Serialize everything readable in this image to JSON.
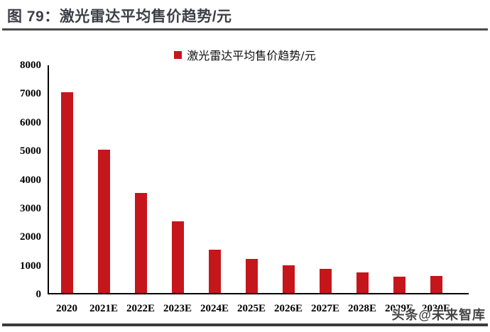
{
  "figure": {
    "title": "图 79：激光雷达平均售价趋势/元",
    "watermark": "头条@未来智库"
  },
  "colors": {
    "bar": "#c5161c",
    "title_text": "#3e3e47",
    "rule": "#4a4a4a",
    "axis": "#000000"
  },
  "chart_data": {
    "type": "bar",
    "title": "激光雷达平均售价趋势/元",
    "legend": [
      "激光雷达平均售价趋势/元"
    ],
    "legend_position": "top-center",
    "categories": [
      "2020",
      "2021E",
      "2022E",
      "2023E",
      "2024E",
      "2025E",
      "2026E",
      "2027E",
      "2028E",
      "2029E",
      "2030E"
    ],
    "values": [
      7000,
      5000,
      3500,
      2500,
      1500,
      1200,
      960,
      830,
      710,
      580,
      590
    ],
    "xlabel": "",
    "ylabel": "",
    "ylim": [
      0,
      8000
    ],
    "yticks": [
      0,
      1000,
      2000,
      3000,
      4000,
      5000,
      6000,
      7000,
      8000
    ],
    "grid": false,
    "unit": "元"
  }
}
